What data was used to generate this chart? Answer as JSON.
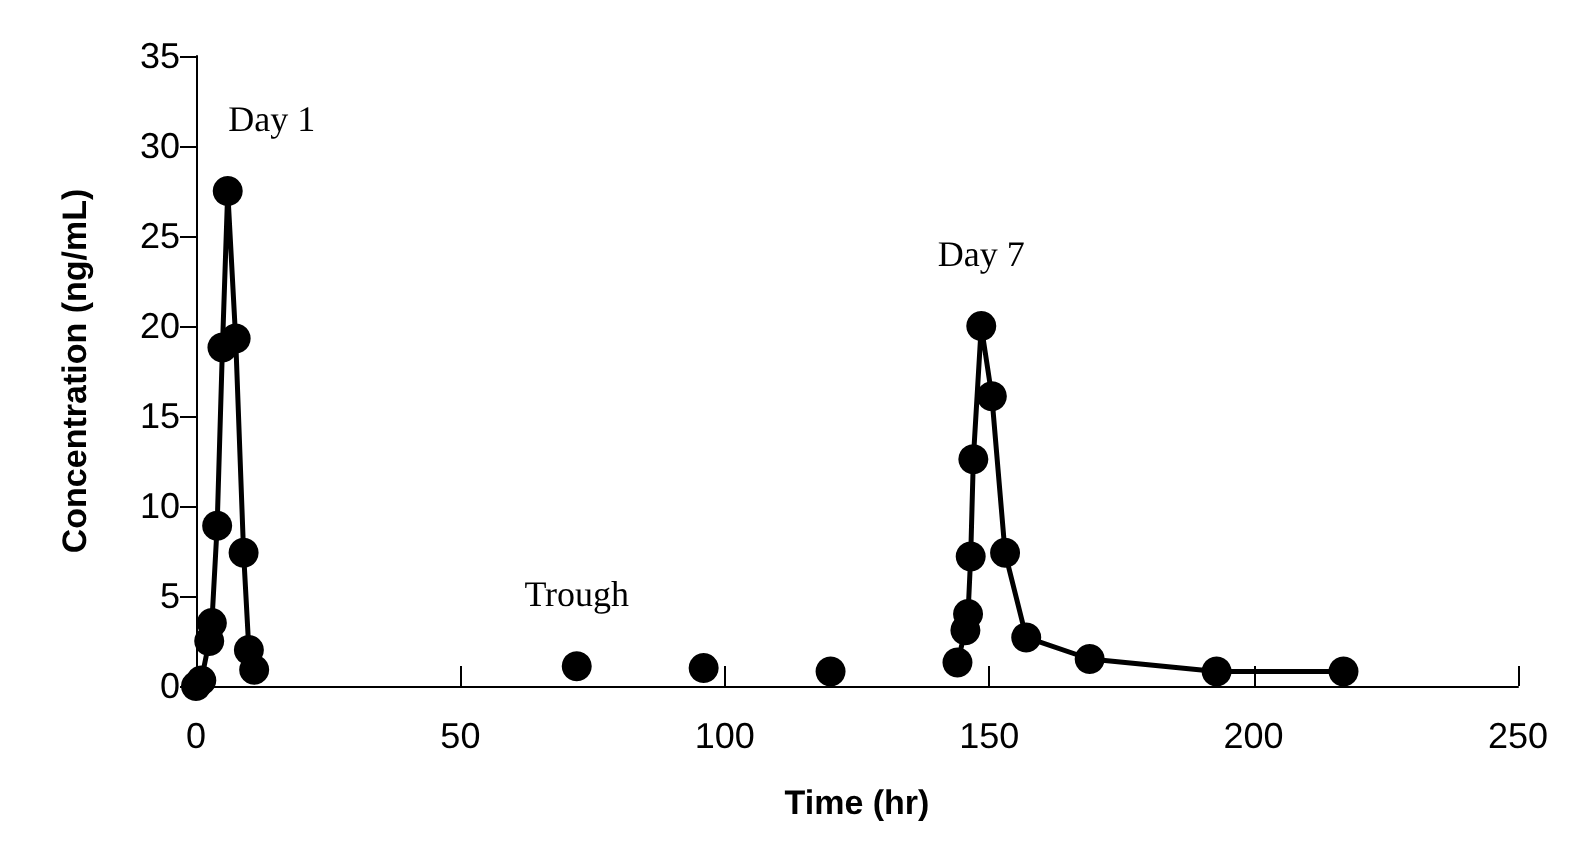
{
  "chart_data": {
    "type": "line",
    "xlabel": "Time (hr)",
    "ylabel": "Concentration (ng/mL)",
    "xlim": [
      0,
      250
    ],
    "xticks": [
      0,
      50,
      100,
      150,
      200,
      250
    ],
    "ylim": [
      0,
      35
    ],
    "yticks": [
      0,
      5,
      10,
      15,
      20,
      25,
      30,
      35
    ],
    "grid": false,
    "marker": "circle",
    "line_style": "solid",
    "series": [
      {
        "color": "#000000",
        "x": [
          0,
          1,
          2.5,
          3,
          4,
          5,
          6,
          7.5,
          9,
          10,
          11
        ],
        "values": [
          0,
          0.3,
          2.5,
          3.5,
          8.9,
          18.8,
          27.5,
          19.3,
          7.4,
          2.0,
          0.9
        ]
      },
      {
        "type": "scatter",
        "color": "#000000",
        "x": [
          72,
          96,
          120
        ],
        "values": [
          1.1,
          1.0,
          0.8
        ]
      },
      {
        "color": "#000000",
        "x": [
          144,
          145.5,
          146,
          146.5,
          147,
          148.5,
          150.5,
          153,
          157,
          169,
          193,
          217
        ],
        "values": [
          1.3,
          3.1,
          4.0,
          7.2,
          12.6,
          20.0,
          16.1,
          7.4,
          2.7,
          1.5,
          0.8,
          0.8
        ]
      }
    ],
    "annotations": [
      "Day 1",
      "Trough",
      "Day 7"
    ]
  }
}
